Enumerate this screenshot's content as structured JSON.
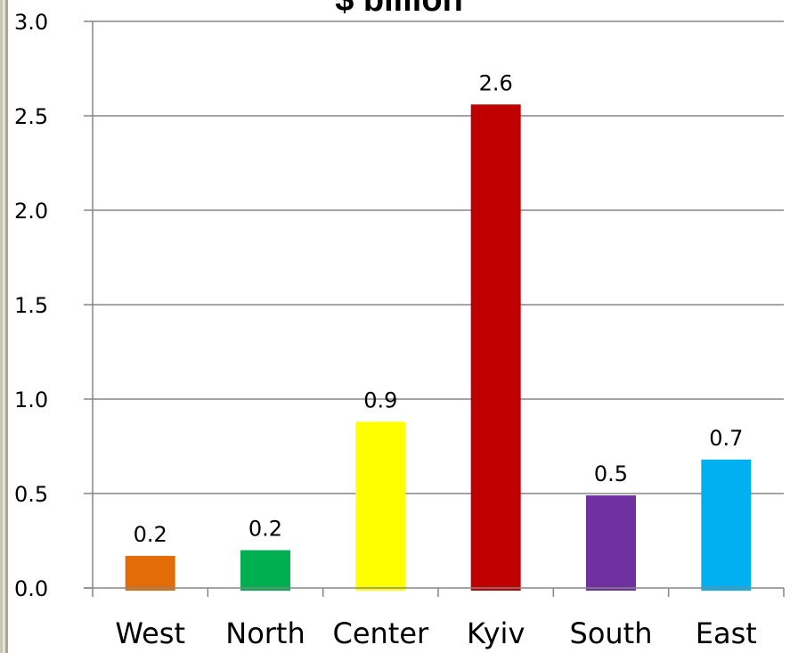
{
  "chart_data": {
    "type": "bar",
    "title": "$ billion",
    "categories": [
      "West",
      "North",
      "Center",
      "Kyiv",
      "South",
      "East"
    ],
    "values": [
      0.17,
      0.2,
      0.88,
      2.56,
      0.49,
      0.68
    ],
    "data_labels": [
      "0.2",
      "0.2",
      "0.9",
      "2.6",
      "0.5",
      "0.7"
    ],
    "bar_colors": [
      "#E36C09",
      "#00B050",
      "#FFFF00",
      "#C00000",
      "#7030A0",
      "#00B0F0"
    ],
    "yticks": [
      "0.0",
      "0.5",
      "1.0",
      "1.5",
      "2.0",
      "2.5",
      "3.0"
    ],
    "ylim": [
      0,
      3.0
    ],
    "grid": true,
    "legend": "none"
  }
}
